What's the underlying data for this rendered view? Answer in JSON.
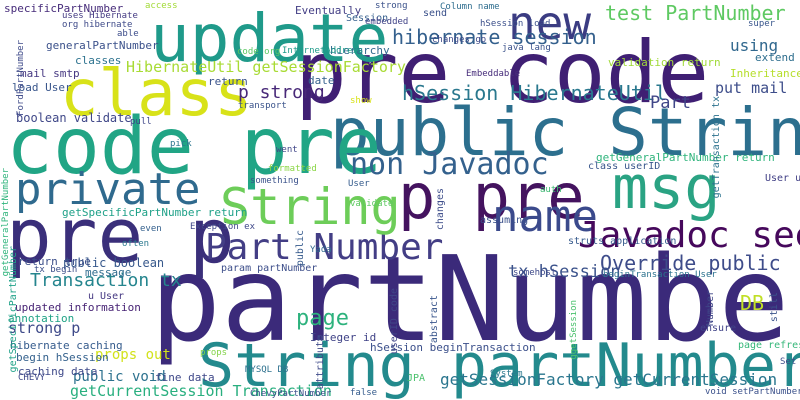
{
  "words": [
    {
      "text": "partNumber",
      "color": "#3b2a7a"
    },
    {
      "text": "pre code",
      "color": "#3f1f73"
    },
    {
      "text": "public String",
      "color": "#2c6f8e"
    },
    {
      "text": "code pre",
      "color": "#21a585"
    },
    {
      "text": "update",
      "color": "#1f9a8a"
    },
    {
      "text": "class",
      "color": "#d8e219"
    },
    {
      "text": "pre p",
      "color": "#3a2f7a"
    },
    {
      "text": "private",
      "color": "#2f6a8e"
    },
    {
      "text": "p pre",
      "color": "#44135f"
    },
    {
      "text": "String partNumber",
      "color": "#238a8d"
    },
    {
      "text": "new",
      "color": "#3b3c82"
    },
    {
      "text": "msg",
      "color": "#2aa383"
    },
    {
      "text": "name",
      "color": "#3b4a8c"
    },
    {
      "text": "Javadoc see",
      "color": "#46085c"
    },
    {
      "text": "Part Number",
      "color": "#433e85"
    },
    {
      "text": "non Javadoc",
      "color": "#34618d"
    },
    {
      "text": "String",
      "color": "#6dcd59"
    },
    {
      "text": "test PartNumber",
      "color": "#5ec962"
    },
    {
      "text": "hibernate session",
      "color": "#34608d"
    },
    {
      "text": "HibernateUtil getSessionFactory",
      "color": "#a8db34"
    },
    {
      "text": "hSession HibernateUtil",
      "color": "#2a788e"
    },
    {
      "text": "Override public",
      "color": "#3e4c8a"
    },
    {
      "text": "tx hSession",
      "color": "#3b528b"
    },
    {
      "text": "DB",
      "color": "#c0df25"
    },
    {
      "text": "page",
      "color": "#2db27d"
    },
    {
      "text": "Transaction tx",
      "color": "#25858e"
    },
    {
      "text": "p strong",
      "color": "#482878"
    },
    {
      "text": "put mail",
      "color": "#3d4d8a"
    },
    {
      "text": "Part",
      "color": "#404688"
    },
    {
      "text": "using",
      "color": "#31688e"
    },
    {
      "text": "getSessionFactory getCurrentSession",
      "color": "#2a768e"
    },
    {
      "text": "getCurrentSession Transaction",
      "color": "#29af7f"
    },
    {
      "text": "strong p",
      "color": "#3e4a89"
    },
    {
      "text": "public void",
      "color": "#2c718e"
    },
    {
      "text": "props out",
      "color": "#d2e21b"
    },
    {
      "text": "public boolean",
      "color": "#38598c"
    },
    {
      "text": "boolean validate",
      "color": "#3f4788"
    },
    {
      "text": "specificPartNumber",
      "color": "#472c7a"
    },
    {
      "text": "generalPartNumber",
      "color": "#3b518b"
    },
    {
      "text": "classes",
      "color": "#2c728e"
    },
    {
      "text": "mail smtp",
      "color": "#453781"
    },
    {
      "text": "load User",
      "color": "#39568c"
    },
    {
      "text": "Inheritance",
      "color": "#b5de2b"
    },
    {
      "text": "extend",
      "color": "#2e6e8e"
    },
    {
      "text": "validation return",
      "color": "#a0da39"
    },
    {
      "text": "return true",
      "color": "#3c4f8a"
    },
    {
      "text": "message",
      "color": "#2f6b8e"
    },
    {
      "text": "Integer id",
      "color": "#404387"
    },
    {
      "text": "getSpecificPartNumber return",
      "color": "#1fa188"
    },
    {
      "text": "getGeneralPartNumber return",
      "color": "#2fb47c"
    },
    {
      "text": "hSession beginTransaction",
      "color": "#3c508b"
    },
    {
      "text": "Eventually",
      "color": "#433e85"
    },
    {
      "text": "hierarchy",
      "color": "#31688e"
    },
    {
      "text": "date",
      "color": "#34608d"
    },
    {
      "text": "return",
      "color": "#3a538b"
    },
    {
      "text": "fine data",
      "color": "#3f4889"
    },
    {
      "text": "caching data",
      "color": "#3e4989"
    },
    {
      "text": "hibernate caching",
      "color": "#365c8d"
    },
    {
      "text": "updated information",
      "color": "#482475"
    },
    {
      "text": "annotation",
      "color": "#20a386"
    },
    {
      "text": "begin hSession",
      "color": "#34618d"
    },
    {
      "text": "Session",
      "color": "#355f8d"
    },
    {
      "text": "send",
      "color": "#3b518b"
    },
    {
      "text": "Column name",
      "color": "#2e6d8e"
    },
    {
      "text": "Embeddable",
      "color": "#472d7b"
    },
    {
      "text": "uses Hibernate",
      "color": "#443a83"
    },
    {
      "text": "org hibernate",
      "color": "#3e4a89"
    },
    {
      "text": "code org",
      "color": "#5cc863"
    },
    {
      "text": "InternetAddress",
      "color": "#1e9b8a"
    },
    {
      "text": "transport",
      "color": "#3a538b"
    },
    {
      "text": "pull",
      "color": "#3f4788"
    },
    {
      "text": "pick",
      "color": "#2b758e"
    },
    {
      "text": "went",
      "color": "#404588"
    },
    {
      "text": "formatted",
      "color": "#8bd646"
    },
    {
      "text": "something",
      "color": "#3b528b"
    },
    {
      "text": "User",
      "color": "#365d8d"
    },
    {
      "text": "class userID",
      "color": "#39568c"
    },
    {
      "text": "User u",
      "color": "#424086"
    },
    {
      "text": "u User",
      "color": "#453882"
    },
    {
      "text": "tx begin",
      "color": "#3c4f8a"
    },
    {
      "text": "param partNumber",
      "color": "#3d4e8a"
    },
    {
      "text": "Exception ex",
      "color": "#3f4889"
    },
    {
      "text": "even",
      "color": "#34608d"
    },
    {
      "text": "often",
      "color": "#2a788e"
    },
    {
      "text": "Yada",
      "color": "#31688e"
    },
    {
      "text": "validate",
      "color": "#5ec962"
    },
    {
      "text": "assuming",
      "color": "#3b518b"
    },
    {
      "text": "struts application",
      "color": "#375b8d"
    },
    {
      "text": "auth",
      "color": "#3fbc73"
    },
    {
      "text": "somehost",
      "color": "#3e4989"
    },
    {
      "text": "beginTransaction User",
      "color": "#2c728e"
    },
    {
      "text": "ensure",
      "color": "#404387"
    },
    {
      "text": "Set",
      "color": "#3d4d8a"
    },
    {
      "text": "page refreshes",
      "color": "#35b779"
    },
    {
      "text": "JPA",
      "color": "#4ac16d"
    },
    {
      "text": "System",
      "color": "#2a788e"
    },
    {
      "text": "CHEVY",
      "color": "#3f4889"
    },
    {
      "text": "ChevyPartNumber",
      "color": "#3c508b"
    },
    {
      "text": "MYSQL DB",
      "color": "#2d718e"
    },
    {
      "text": "props",
      "color": "#84d44b"
    },
    {
      "text": "false",
      "color": "#365c8d"
    },
    {
      "text": "java lang",
      "color": "#3b528b"
    },
    {
      "text": "changes go",
      "color": "#3e4a89"
    },
    {
      "text": "show",
      "color": "#d8e219"
    },
    {
      "text": "super",
      "color": "#39568c"
    },
    {
      "text": "void setPartNumber",
      "color": "#3b518b"
    },
    {
      "text": "access",
      "color": "#a2da37"
    },
    {
      "text": "able",
      "color": "#3d4d8a"
    },
    {
      "text": "strong",
      "color": "#3b528b"
    },
    {
      "text": "embedded",
      "color": "#404387"
    },
    {
      "text": "hSession load",
      "color": "#3c508b"
    },
    {
      "text": "FordPartNumber",
      "color": "#3e4a89"
    },
    {
      "text": "getGeneralPartNumber",
      "color": "#2fb47c"
    },
    {
      "text": "getSpecificPartNumber",
      "color": "#1fa188"
    },
    {
      "text": "getTransaction tx",
      "color": "#2c728e"
    },
    {
      "text": "attribute",
      "color": "#3e4a89"
    },
    {
      "text": "public",
      "color": "#375b8d"
    },
    {
      "text": "userID code",
      "color": "#404588"
    },
    {
      "text": "abstract",
      "color": "#39568c"
    },
    {
      "text": "changes",
      "color": "#3d4d8a"
    },
    {
      "text": "still",
      "color": "#3a538b"
    },
    {
      "text": "Number",
      "color": "#3f4788"
    },
    {
      "text": "ggetSession",
      "color": "#4ac16d"
    }
  ]
}
